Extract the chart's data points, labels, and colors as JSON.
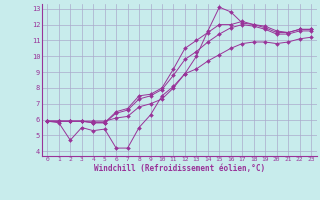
{
  "background_color": "#c8ecec",
  "grid_color": "#aaaacc",
  "line_color": "#993399",
  "marker_color": "#993399",
  "xlabel": "Windchill (Refroidissement éolien,°C)",
  "xlim": [
    -0.5,
    23.5
  ],
  "ylim": [
    3.7,
    13.3
  ],
  "yticks": [
    4,
    5,
    6,
    7,
    8,
    9,
    10,
    11,
    12,
    13
  ],
  "xticks": [
    0,
    1,
    2,
    3,
    4,
    5,
    6,
    7,
    8,
    9,
    10,
    11,
    12,
    13,
    14,
    15,
    16,
    17,
    18,
    19,
    20,
    21,
    22,
    23
  ],
  "lines": [
    {
      "x": [
        0,
        1,
        2,
        3,
        4,
        5,
        6,
        7,
        8,
        9,
        10,
        11,
        12,
        13,
        14,
        15,
        16,
        17,
        18,
        19,
        20,
        21,
        22,
        23
      ],
      "y": [
        5.9,
        5.8,
        4.7,
        5.5,
        5.3,
        5.4,
        4.2,
        4.2,
        5.5,
        6.3,
        7.5,
        8.1,
        8.9,
        10.0,
        11.6,
        13.1,
        12.8,
        12.1,
        12.0,
        11.9,
        11.6,
        11.5,
        11.7,
        11.7
      ]
    },
    {
      "x": [
        0,
        1,
        2,
        3,
        4,
        5,
        6,
        7,
        8,
        9,
        10,
        11,
        12,
        13,
        14,
        15,
        16,
        17,
        18,
        19,
        20,
        21,
        22,
        23
      ],
      "y": [
        5.9,
        5.9,
        5.9,
        5.9,
        5.8,
        5.8,
        6.5,
        6.7,
        7.5,
        7.6,
        8.0,
        9.2,
        10.5,
        11.0,
        11.5,
        12.0,
        12.0,
        12.2,
        12.0,
        11.8,
        11.5,
        11.5,
        11.7,
        11.7
      ]
    },
    {
      "x": [
        0,
        1,
        2,
        3,
        4,
        5,
        6,
        7,
        8,
        9,
        10,
        11,
        12,
        13,
        14,
        15,
        16,
        17,
        18,
        19,
        20,
        21,
        22,
        23
      ],
      "y": [
        5.9,
        5.9,
        5.9,
        5.9,
        5.8,
        5.8,
        6.4,
        6.6,
        7.3,
        7.5,
        7.9,
        8.8,
        9.8,
        10.3,
        10.9,
        11.4,
        11.8,
        12.0,
        11.9,
        11.7,
        11.4,
        11.4,
        11.6,
        11.6
      ]
    },
    {
      "x": [
        0,
        1,
        2,
        3,
        4,
        5,
        6,
        7,
        8,
        9,
        10,
        11,
        12,
        13,
        14,
        15,
        16,
        17,
        18,
        19,
        20,
        21,
        22,
        23
      ],
      "y": [
        5.9,
        5.9,
        5.9,
        5.9,
        5.9,
        5.9,
        6.1,
        6.2,
        6.8,
        7.0,
        7.3,
        8.0,
        8.9,
        9.2,
        9.7,
        10.1,
        10.5,
        10.8,
        10.9,
        10.9,
        10.8,
        10.9,
        11.1,
        11.2
      ]
    }
  ]
}
